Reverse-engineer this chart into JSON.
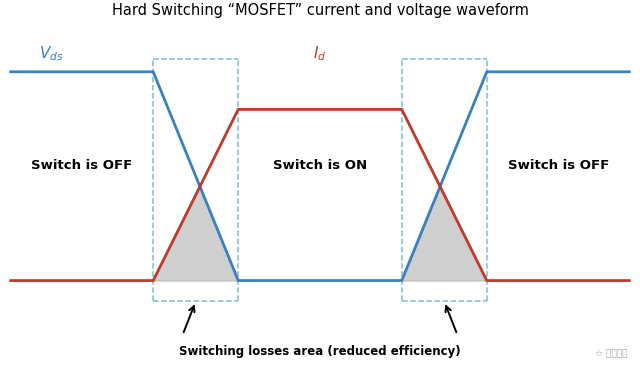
{
  "title": "Hard Switching “MOSFET” current and voltage waveform",
  "vds_label": "V",
  "vds_subscript": "ds",
  "id_label": "I",
  "id_subscript": "d",
  "blue_color": "#3a7fc1",
  "red_color": "#c0392b",
  "gray_color": "#b0b0b0",
  "dashed_color": "#7abfcf",
  "background_color": "#ffffff",
  "label_off1": "Switch is OFF",
  "label_on": "Switch is ON",
  "label_off2": "Switch is OFF",
  "annotation": "Switching losses area (reduced efficiency)",
  "vds_high": 1.0,
  "vds_low": 0.0,
  "id_high": 0.82,
  "id_low": 0.0,
  "t0": 0.0,
  "t1": 2.2,
  "t2": 3.5,
  "t3": 6.0,
  "t4": 7.3,
  "te": 9.5,
  "figw": 6.4,
  "figh": 3.71,
  "dpi": 100
}
